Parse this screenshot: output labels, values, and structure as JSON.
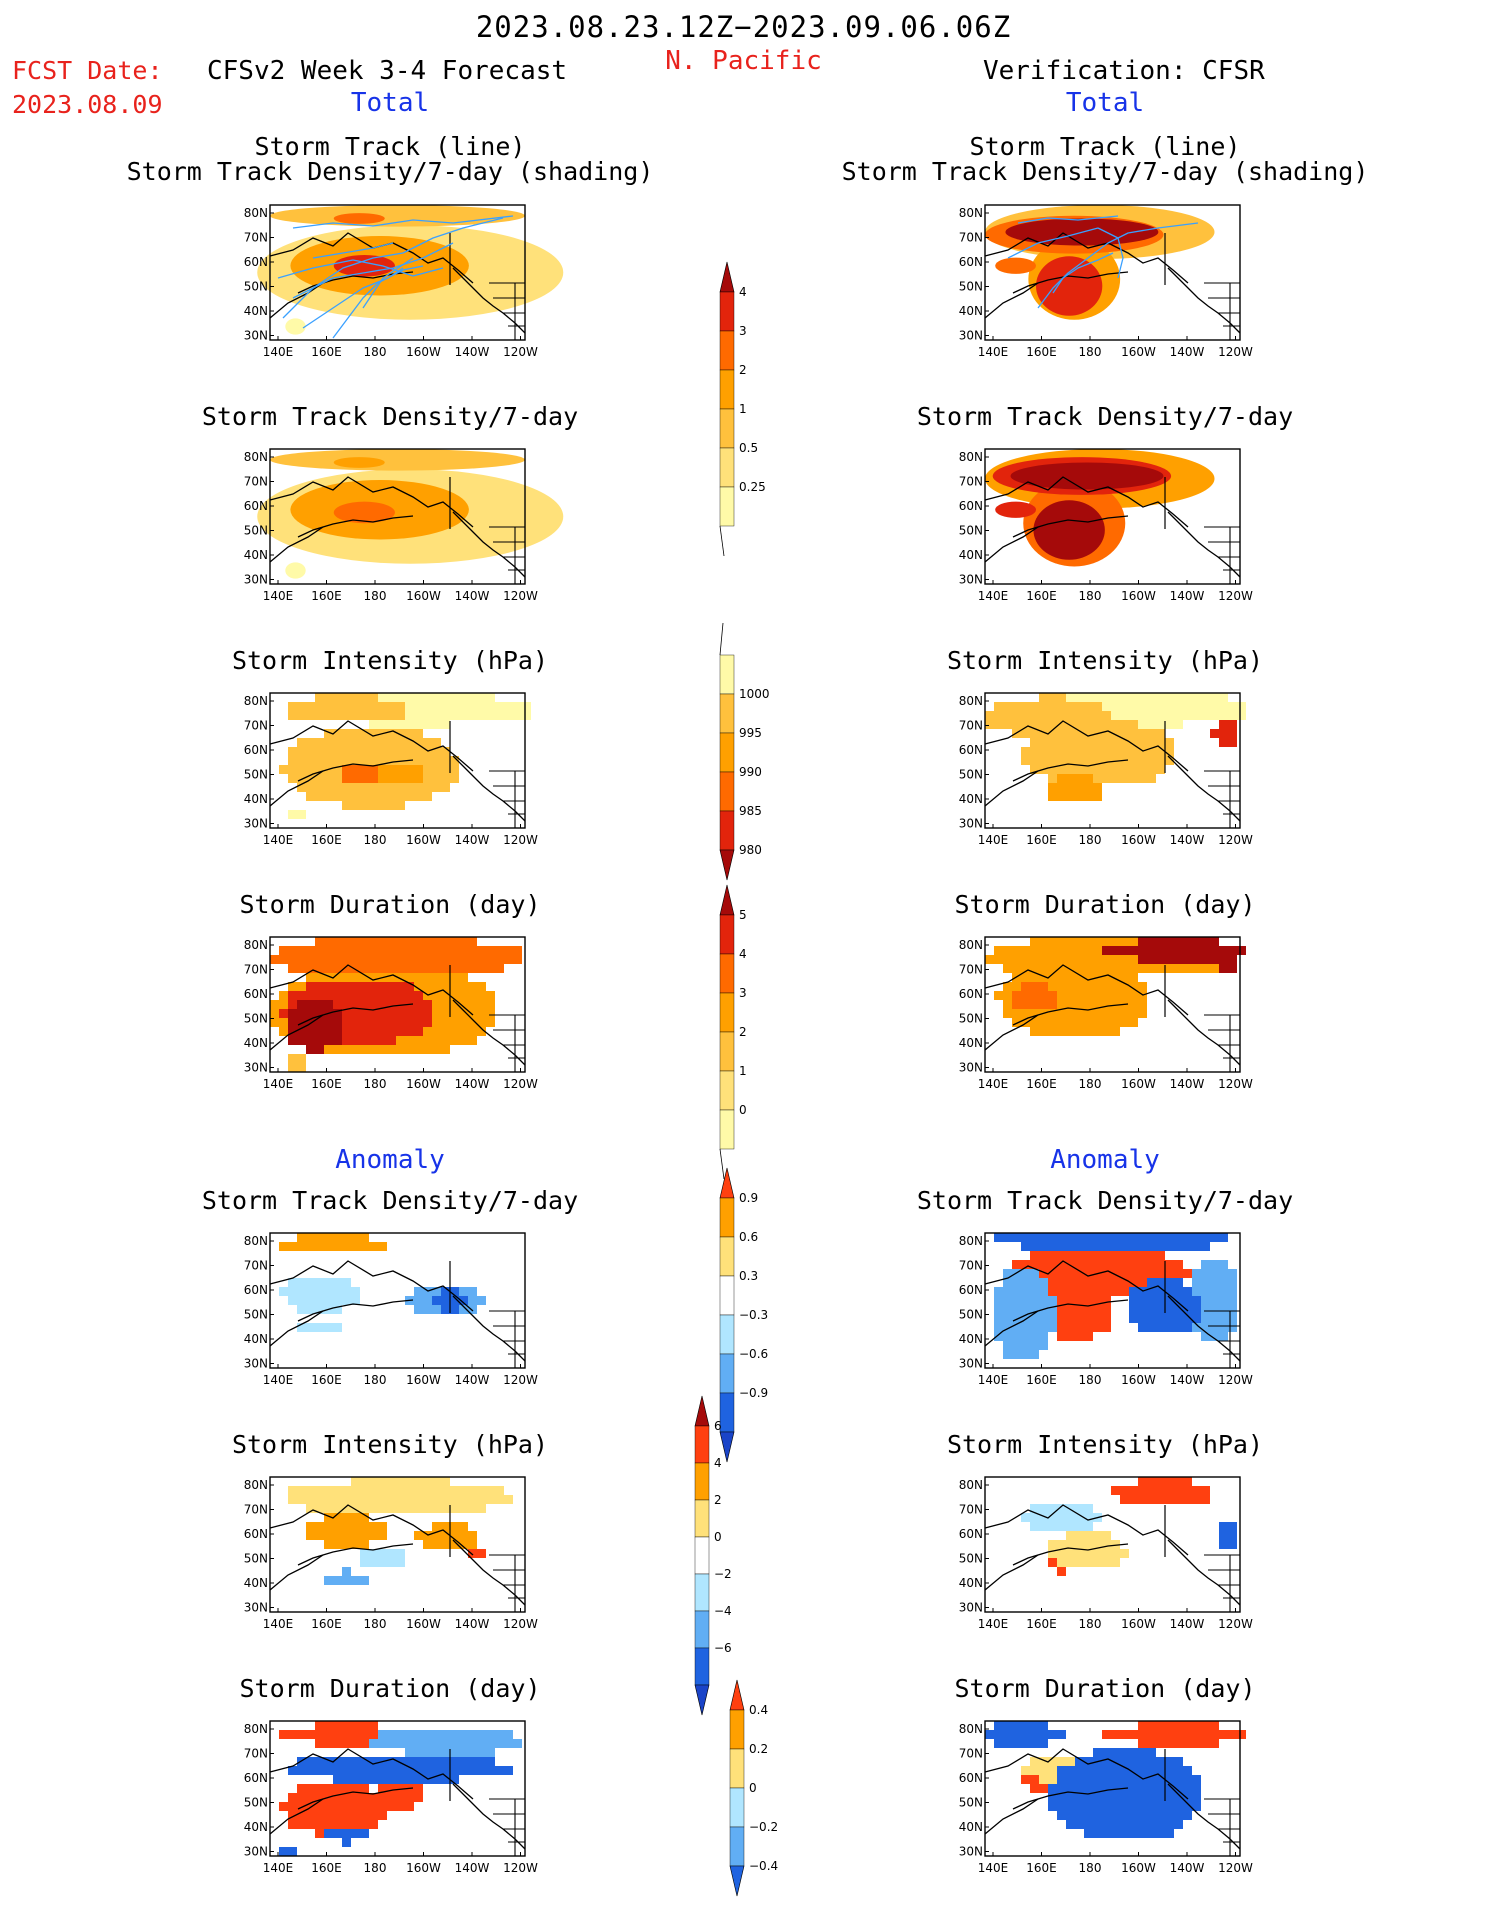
{
  "header": {
    "title": "2023.08.23.12Z−2023.09.06.06Z",
    "region": "N. Pacific",
    "fcst_label": "FCST Date:",
    "fcst_date": "2023.08.09",
    "left_model": "CFSv2 Week 3-4 Forecast",
    "right_model": "Verification: CFSR",
    "total_left": "Total",
    "total_right": "Total",
    "anomaly_left": "Anomaly",
    "anomaly_right": "Anomaly"
  },
  "titles": {
    "track_line": "Storm Track (line)",
    "track_shade": "Storm Track Density/7-day (shading)",
    "density": "Storm Track Density/7-day",
    "intensity": "Storm Intensity (hPa)",
    "duration": "Storm Duration (day)"
  },
  "axes": {
    "lat_labels": [
      "80N",
      "70N",
      "60N",
      "50N",
      "40N",
      "30N"
    ],
    "lon_labels": [
      "140E",
      "160E",
      "180",
      "160W",
      "140W",
      "120W"
    ]
  },
  "colorbars": {
    "density": {
      "labels": [
        "0.25",
        "0.5",
        "1",
        "2",
        "3",
        "4"
      ],
      "colors": [
        "#fffaa8",
        "#ffe17a",
        "#ffc13d",
        "#ffa000",
        "#ff6a00",
        "#e2240c",
        "#a50a0a"
      ]
    },
    "intensity": {
      "labels": [
        "1000",
        "995",
        "990",
        "985",
        "980"
      ],
      "colors": [
        "#fffaa8",
        "#ffc13d",
        "#ffa000",
        "#ff6a00",
        "#e2240c",
        "#a50a0a"
      ]
    },
    "duration": {
      "labels": [
        "0",
        "1",
        "2",
        "3",
        "4",
        "5"
      ],
      "colors": [
        "#fffaa8",
        "#ffe17a",
        "#ffc13d",
        "#ffa000",
        "#ff6a00",
        "#e2240c",
        "#a50a0a"
      ]
    },
    "anom_density": {
      "labels": [
        "0.9",
        "0.6",
        "0.3",
        "−0.3",
        "−0.6",
        "−0.9"
      ],
      "colors": [
        "#ff4010",
        "#ffa000",
        "#ffe17a",
        "#ffffff",
        "#b0e6ff",
        "#61aef4",
        "#1f63e0",
        "#1a44c8"
      ]
    },
    "anom_intensity": {
      "labels": [
        "6",
        "4",
        "2",
        "0",
        "−2",
        "−4",
        "−6"
      ],
      "colors": [
        "#a50a0a",
        "#ff4010",
        "#ffa000",
        "#ffe17a",
        "#ffffff",
        "#b0e6ff",
        "#61aef4",
        "#1f63e0",
        "#1a44c8"
      ]
    },
    "anom_duration": {
      "labels": [
        "0.4",
        "0.2",
        "0",
        "−0.2",
        "−0.4"
      ],
      "colors": [
        "#ff4010",
        "#ffa000",
        "#ffe17a",
        "#b0e6ff",
        "#61aef4",
        "#1f63e0"
      ]
    }
  },
  "palette": {
    "storm_track_line": "#3aa0ff",
    "coastline": "#000000",
    "title_blue": "#1733e8",
    "title_red": "#e8221c"
  }
}
